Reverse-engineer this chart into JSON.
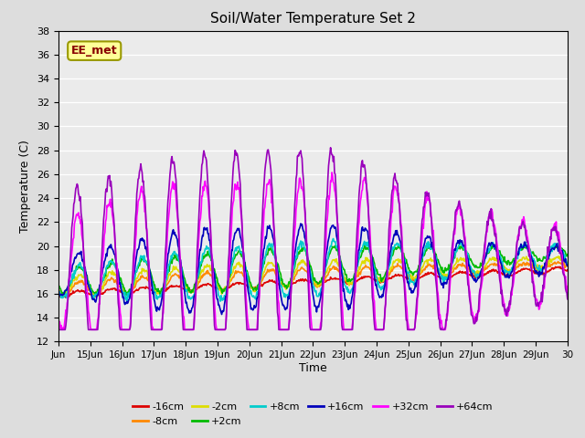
{
  "title": "Soil/Water Temperature Set 2",
  "xlabel": "Time",
  "ylabel": "Temperature (C)",
  "ylim": [
    12,
    38
  ],
  "yticks": [
    12,
    14,
    16,
    18,
    20,
    22,
    24,
    26,
    28,
    30,
    32,
    34,
    36,
    38
  ],
  "xtick_labels": [
    "Jun",
    "15Jun",
    "16Jun",
    "17Jun",
    "18Jun",
    "19Jun",
    "20Jun",
    "21Jun",
    "22Jun",
    "23Jun",
    "24Jun",
    "25Jun",
    "26Jun",
    "27Jun",
    "28Jun",
    "29Jun",
    "30"
  ],
  "series_order": [
    "-16cm",
    "-8cm",
    "-2cm",
    "+2cm",
    "+8cm",
    "+16cm",
    "+32cm",
    "+64cm"
  ],
  "series": {
    "-16cm": {
      "color": "#dd0000"
    },
    "-8cm": {
      "color": "#ff8800"
    },
    "-2cm": {
      "color": "#dddd00"
    },
    "+2cm": {
      "color": "#00bb00"
    },
    "+8cm": {
      "color": "#00cccc"
    },
    "+16cm": {
      "color": "#0000bb"
    },
    "+32cm": {
      "color": "#ff00ff"
    },
    "+64cm": {
      "color": "#9900bb"
    }
  },
  "annotation_text": "EE_met",
  "bg_color": "#dddddd",
  "plot_bg_color": "#ebebeb"
}
